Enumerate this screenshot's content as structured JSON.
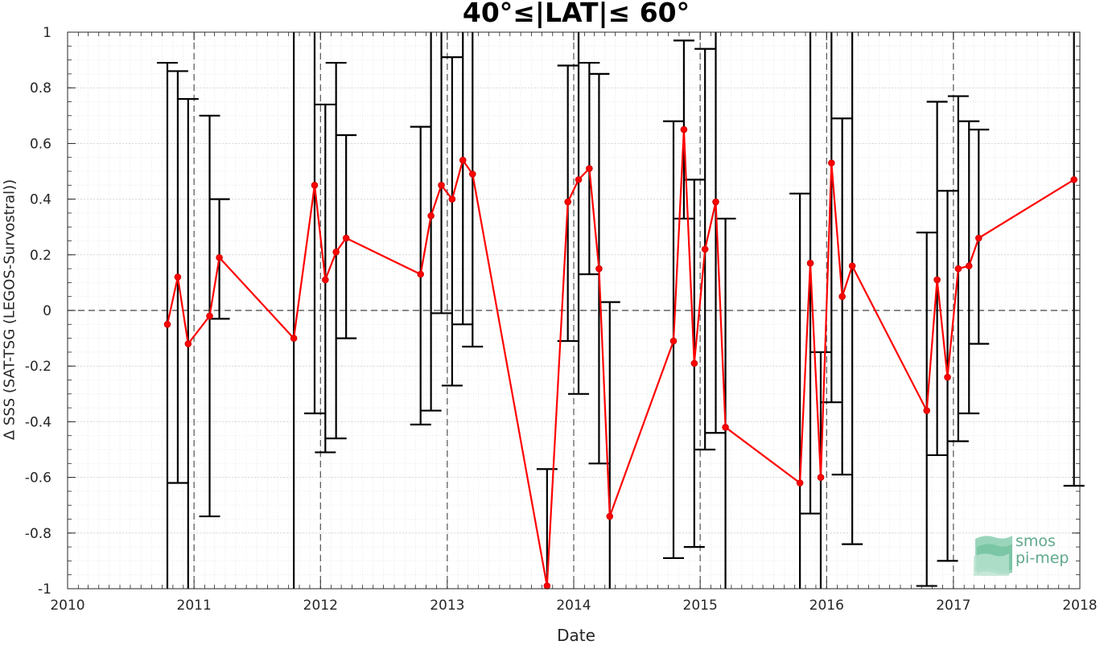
{
  "title": "40°≤|LAT|≤ 60°",
  "logo": {
    "line1": "smos",
    "line2": "pi-mep"
  },
  "colors": {
    "series": "#ff0000",
    "errorbar": "#000000",
    "grid": "#d9d9d9",
    "axis": "#262626",
    "logo": "#5fa98c"
  },
  "chart_data": {
    "type": "line",
    "xlabel": "Date",
    "ylabel": "Δ SSS (SAT-TSG (LEGOS-Survostral))",
    "xlim": [
      "2010-01-01",
      "2018-01-01"
    ],
    "ylim": [
      -1,
      1
    ],
    "xticks": [
      "2010",
      "2011",
      "2012",
      "2013",
      "2014",
      "2015",
      "2016",
      "2017",
      "2018"
    ],
    "yticks": [
      1,
      0.8,
      0.6,
      0.4,
      0.2,
      0,
      -0.2,
      -0.4,
      -0.6,
      -0.8,
      -1
    ],
    "grid": true,
    "reference_lines": {
      "horizontal": 0,
      "vertical": [
        "2011-01-01",
        "2012-01-01",
        "2013-01-01",
        "2014-01-01",
        "2015-01-01",
        "2016-01-01",
        "2017-01-01"
      ]
    },
    "series": [
      {
        "points": [
          {
            "x": "2010-10-16",
            "y": -0.05,
            "lo": -1.2,
            "hi": 0.89
          },
          {
            "x": "2010-11-15",
            "y": 0.12,
            "lo": -0.62,
            "hi": 0.86
          },
          {
            "x": "2010-12-15",
            "y": -0.12,
            "lo": -1.2,
            "hi": 0.76
          },
          {
            "x": "2011-02-15",
            "y": -0.02,
            "lo": -0.74,
            "hi": 0.7
          },
          {
            "x": "2011-03-15",
            "y": 0.19,
            "lo": -0.03,
            "hi": 0.4
          },
          {
            "x": "2011-10-16",
            "y": -0.1,
            "lo": -1.2,
            "hi": 1.2
          },
          {
            "x": "2011-12-15",
            "y": 0.45,
            "lo": -0.37,
            "hi": 1.2
          },
          {
            "x": "2012-01-15",
            "y": 0.11,
            "lo": -0.51,
            "hi": 0.74
          },
          {
            "x": "2012-02-15",
            "y": 0.21,
            "lo": -0.46,
            "hi": 0.89
          },
          {
            "x": "2012-03-15",
            "y": 0.26,
            "lo": -0.1,
            "hi": 0.63
          },
          {
            "x": "2012-10-16",
            "y": 0.13,
            "lo": -0.41,
            "hi": 0.66
          },
          {
            "x": "2012-11-15",
            "y": 0.34,
            "lo": -0.36,
            "hi": 1.2
          },
          {
            "x": "2012-12-15",
            "y": 0.45,
            "lo": -0.01,
            "hi": 1.2
          },
          {
            "x": "2013-01-15",
            "y": 0.4,
            "lo": -0.27,
            "hi": 0.91
          },
          {
            "x": "2013-02-15",
            "y": 0.54,
            "lo": -0.05,
            "hi": 1.2
          },
          {
            "x": "2013-03-15",
            "y": 0.49,
            "lo": -0.13,
            "hi": 1.2
          },
          {
            "x": "2013-10-16",
            "y": -0.99,
            "lo": -1.2,
            "hi": -0.57
          },
          {
            "x": "2013-12-15",
            "y": 0.39,
            "lo": -0.11,
            "hi": 0.88
          },
          {
            "x": "2014-01-15",
            "y": 0.47,
            "lo": -0.3,
            "hi": 1.2
          },
          {
            "x": "2014-02-15",
            "y": 0.51,
            "lo": 0.13,
            "hi": 0.89
          },
          {
            "x": "2014-03-15",
            "y": 0.15,
            "lo": -0.55,
            "hi": 0.85
          },
          {
            "x": "2014-04-15",
            "y": -0.74,
            "lo": -1.2,
            "hi": 0.03
          },
          {
            "x": "2014-10-16",
            "y": -0.11,
            "lo": -0.89,
            "hi": 0.68
          },
          {
            "x": "2014-11-15",
            "y": 0.65,
            "lo": 0.33,
            "hi": 0.97
          },
          {
            "x": "2014-12-15",
            "y": -0.19,
            "lo": -0.85,
            "hi": 0.47
          },
          {
            "x": "2015-01-15",
            "y": 0.22,
            "lo": -0.5,
            "hi": 0.94
          },
          {
            "x": "2015-02-15",
            "y": 0.39,
            "lo": -0.44,
            "hi": 1.2
          },
          {
            "x": "2015-03-15",
            "y": -0.42,
            "lo": -1.2,
            "hi": 0.33
          },
          {
            "x": "2015-10-16",
            "y": -0.62,
            "lo": -1.2,
            "hi": 0.42
          },
          {
            "x": "2015-11-15",
            "y": 0.17,
            "lo": -0.73,
            "hi": 1.2
          },
          {
            "x": "2015-12-15",
            "y": -0.6,
            "lo": -1.2,
            "hi": -0.15
          },
          {
            "x": "2016-01-15",
            "y": 0.53,
            "lo": -0.33,
            "hi": 1.2
          },
          {
            "x": "2016-02-15",
            "y": 0.05,
            "lo": -0.59,
            "hi": 0.69
          },
          {
            "x": "2016-03-15",
            "y": 0.16,
            "lo": -0.84,
            "hi": 1.2
          },
          {
            "x": "2016-10-16",
            "y": -0.36,
            "lo": -0.99,
            "hi": 0.28
          },
          {
            "x": "2016-11-15",
            "y": 0.11,
            "lo": -0.52,
            "hi": 0.75
          },
          {
            "x": "2016-12-15",
            "y": -0.24,
            "lo": -0.9,
            "hi": 0.43
          },
          {
            "x": "2017-01-15",
            "y": 0.15,
            "lo": -0.47,
            "hi": 0.77
          },
          {
            "x": "2017-02-15",
            "y": 0.16,
            "lo": -0.37,
            "hi": 0.68
          },
          {
            "x": "2017-03-15",
            "y": 0.26,
            "lo": -0.12,
            "hi": 0.65
          },
          {
            "x": "2017-12-15",
            "y": 0.47,
            "lo": -0.63,
            "hi": 1.2
          }
        ]
      }
    ]
  }
}
